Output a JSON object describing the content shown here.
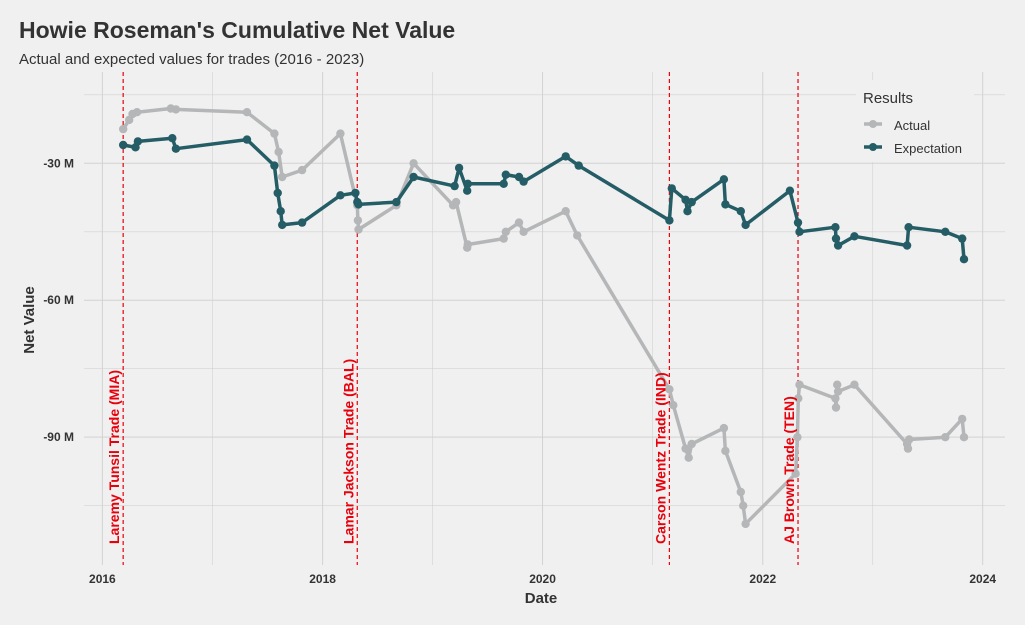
{
  "colors": {
    "background": "#f0f0f0",
    "grid": "#d2d2d2",
    "actual": "#b4b6b8",
    "expectation": "#245d66",
    "annotation": "#e8000b",
    "text": "#333333"
  },
  "chart_data": {
    "type": "line",
    "title": "Howie Roseman's Cumulative Net Value",
    "subtitle": "Actual and expected values for trades (2016 - 2023)",
    "xlabel": "Date",
    "ylabel": "Net Value",
    "xlim": [
      "2015-11-01",
      "2024-03-15"
    ],
    "ylim": [
      -118,
      -10
    ],
    "x_ticks": [
      {
        "date": "2016-01-01",
        "label": "2016"
      },
      {
        "date": "2018-01-01",
        "label": "2018"
      },
      {
        "date": "2020-01-01",
        "label": "2020"
      },
      {
        "date": "2022-01-01",
        "label": "2022"
      },
      {
        "date": "2024-01-01",
        "label": "2024"
      }
    ],
    "y_ticks": [
      {
        "value": -30,
        "label": "-30 M"
      },
      {
        "value": -60,
        "label": "-60 M"
      },
      {
        "value": -90,
        "label": "-90 M"
      }
    ],
    "grid": true,
    "legend": {
      "title": "Results",
      "position": "top-right"
    },
    "series": [
      {
        "name": "Actual",
        "color": "#b4b6b8",
        "points": [
          [
            "2016-03-10",
            -22.5
          ],
          [
            "2016-03-30",
            -20.5
          ],
          [
            "2016-04-10",
            -19.2
          ],
          [
            "2016-04-25",
            -18.8
          ],
          [
            "2016-08-15",
            -18.0
          ],
          [
            "2016-09-01",
            -18.2
          ],
          [
            "2017-04-25",
            -18.8
          ],
          [
            "2017-07-25",
            -23.5
          ],
          [
            "2017-08-08",
            -27.5
          ],
          [
            "2017-08-20",
            -33.0
          ],
          [
            "2017-10-25",
            -31.5
          ],
          [
            "2018-03-01",
            -23.5
          ],
          [
            "2018-04-26",
            -39.2
          ],
          [
            "2018-04-28",
            -42.5
          ],
          [
            "2018-04-30",
            -44.5
          ],
          [
            "2018-09-03",
            -39.2
          ],
          [
            "2018-10-30",
            -30.0
          ],
          [
            "2019-03-10",
            -39.2
          ],
          [
            "2019-03-20",
            -38.5
          ],
          [
            "2019-04-26",
            -48.5
          ],
          [
            "2019-04-28",
            -47.8
          ],
          [
            "2019-08-25",
            -46.5
          ],
          [
            "2019-09-01",
            -45.0
          ],
          [
            "2019-10-15",
            -43.0
          ],
          [
            "2019-10-30",
            -45.0
          ],
          [
            "2020-03-18",
            -40.5
          ],
          [
            "2020-04-25",
            -45.8
          ],
          [
            "2021-02-25",
            -79.5
          ],
          [
            "2021-03-10",
            -83.0
          ],
          [
            "2021-04-20",
            -92.5
          ],
          [
            "2021-04-30",
            -94.5
          ],
          [
            "2021-05-10",
            -91.5
          ],
          [
            "2021-08-25",
            -88.0
          ],
          [
            "2021-08-30",
            -93.0
          ],
          [
            "2021-10-20",
            -102.0
          ],
          [
            "2021-10-28",
            -105.0
          ],
          [
            "2021-11-05",
            -109.0
          ],
          [
            "2022-04-20",
            -98.0
          ],
          [
            "2022-04-26",
            -90.0
          ],
          [
            "2022-04-29",
            -81.5
          ],
          [
            "2022-05-03",
            -78.5
          ],
          [
            "2022-08-30",
            -81.5
          ],
          [
            "2022-09-01",
            -83.5
          ],
          [
            "2022-09-05",
            -78.5
          ],
          [
            "2022-09-08",
            -80.0
          ],
          [
            "2022-11-01",
            -78.5
          ],
          [
            "2023-04-25",
            -91.5
          ],
          [
            "2023-04-28",
            -92.5
          ],
          [
            "2023-05-02",
            -90.5
          ],
          [
            "2023-08-30",
            -90.0
          ],
          [
            "2023-10-25",
            -86.0
          ],
          [
            "2023-10-31",
            -90.0
          ]
        ]
      },
      {
        "name": "Expectation",
        "color": "#245d66",
        "points": [
          [
            "2016-03-10",
            -26.0
          ],
          [
            "2016-04-20",
            -26.5
          ],
          [
            "2016-04-28",
            -25.2
          ],
          [
            "2016-08-20",
            -24.5
          ],
          [
            "2016-09-01",
            -26.8
          ],
          [
            "2017-04-25",
            -24.8
          ],
          [
            "2017-07-25",
            -30.5
          ],
          [
            "2017-08-05",
            -36.5
          ],
          [
            "2017-08-15",
            -40.5
          ],
          [
            "2017-08-20",
            -43.5
          ],
          [
            "2017-10-25",
            -43.0
          ],
          [
            "2018-03-01",
            -37.0
          ],
          [
            "2018-04-20",
            -36.5
          ],
          [
            "2018-04-26",
            -38.5
          ],
          [
            "2018-04-30",
            -39.0
          ],
          [
            "2018-09-03",
            -38.5
          ],
          [
            "2018-10-30",
            -33.0
          ],
          [
            "2019-03-15",
            -35.0
          ],
          [
            "2019-03-30",
            -31.0
          ],
          [
            "2019-04-26",
            -36.0
          ],
          [
            "2019-04-28",
            -34.5
          ],
          [
            "2019-08-25",
            -34.5
          ],
          [
            "2019-09-01",
            -32.5
          ],
          [
            "2019-10-15",
            -33.0
          ],
          [
            "2019-10-30",
            -34.0
          ],
          [
            "2020-03-18",
            -28.5
          ],
          [
            "2020-04-30",
            -30.5
          ],
          [
            "2021-02-25",
            -42.5
          ],
          [
            "2021-03-05",
            -35.5
          ],
          [
            "2021-04-20",
            -38.0
          ],
          [
            "2021-04-26",
            -40.5
          ],
          [
            "2021-05-10",
            -38.5
          ],
          [
            "2021-08-25",
            -33.5
          ],
          [
            "2021-08-30",
            -39.0
          ],
          [
            "2021-10-20",
            -40.5
          ],
          [
            "2021-11-05",
            -43.5
          ],
          [
            "2022-04-01",
            -36.0
          ],
          [
            "2022-04-28",
            -43.0
          ],
          [
            "2022-05-03",
            -45.0
          ],
          [
            "2022-08-30",
            -44.0
          ],
          [
            "2022-09-01",
            -46.5
          ],
          [
            "2022-09-08",
            -48.0
          ],
          [
            "2022-11-01",
            -46.0
          ],
          [
            "2023-04-25",
            -48.0
          ],
          [
            "2023-04-30",
            -44.0
          ],
          [
            "2023-08-30",
            -45.0
          ],
          [
            "2023-10-25",
            -46.5
          ],
          [
            "2023-10-31",
            -51.0
          ]
        ]
      }
    ],
    "annotations": [
      {
        "date": "2016-03-10",
        "label": "Laremy Tunsil Trade (MIA)"
      },
      {
        "date": "2018-04-26",
        "label": "Lamar Jackson Trade (BAL)"
      },
      {
        "date": "2021-02-25",
        "label": "Carson Wentz Trade (IND)"
      },
      {
        "date": "2022-04-28",
        "label": "AJ Brown Trade (TEN)"
      }
    ]
  }
}
